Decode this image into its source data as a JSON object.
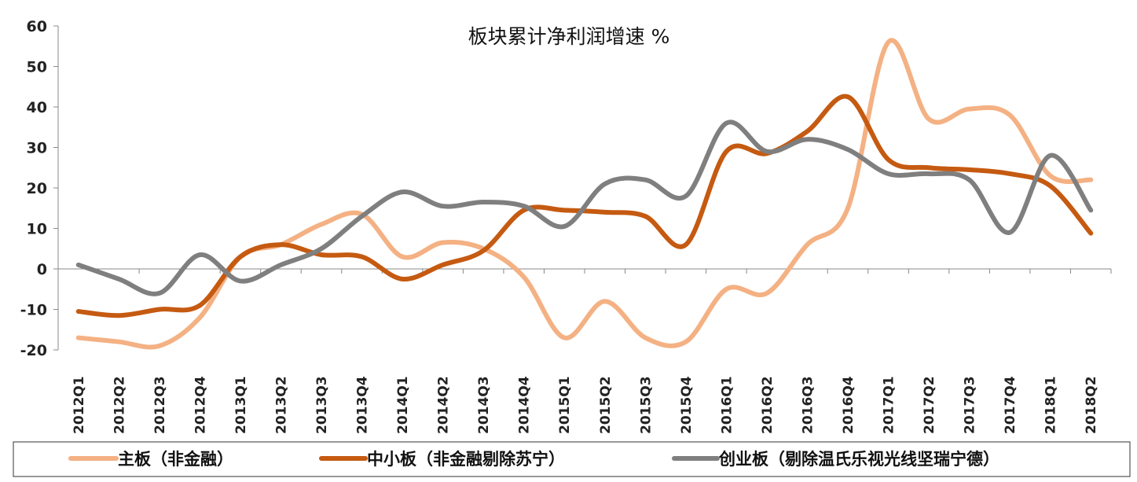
{
  "chart_data": {
    "type": "line",
    "title": "板块累计净利润增速 %",
    "xlabel": "",
    "ylabel": "",
    "ylim": [
      -20,
      60
    ],
    "yticks": [
      60,
      50,
      40,
      30,
      20,
      10,
      0,
      -10,
      -20
    ],
    "grid": false,
    "legend_position": "bottom",
    "categories": [
      "2012Q1",
      "2012Q2",
      "2012Q3",
      "2012Q4",
      "2013Q1",
      "2013Q2",
      "2013Q3",
      "2013Q4",
      "2014Q1",
      "2014Q2",
      "2014Q3",
      "2014Q4",
      "2015Q1",
      "2015Q2",
      "2015Q3",
      "2015Q4",
      "2016Q1",
      "2016Q2",
      "2016Q3",
      "2016Q4",
      "2017Q1",
      "2017Q2",
      "2017Q3",
      "2017Q4",
      "2018Q1",
      "2018Q2"
    ],
    "series": [
      {
        "name": "主板（非金融）",
        "color": "#F4B183",
        "values": [
          -17,
          -18,
          -19,
          -12,
          3,
          6,
          11,
          13.5,
          3,
          6.5,
          5,
          -2,
          -17,
          -8,
          -17,
          -18,
          -5,
          -6,
          6,
          15,
          56,
          37,
          39.5,
          38,
          23,
          22
        ]
      },
      {
        "name": "中小板（非金融剔除苏宁）",
        "color": "#C55A11",
        "values": [
          -10.5,
          -11.5,
          -10,
          -9,
          3,
          6,
          3.5,
          3,
          -2.5,
          1,
          4.5,
          14.5,
          14.5,
          14,
          13,
          6,
          29,
          28.5,
          34,
          42.5,
          27,
          25,
          24.5,
          23.5,
          20.5,
          8.8
        ]
      },
      {
        "name": "创业板（剔除温氏乐视光线坚瑞宁德）",
        "color": "#7F7F7F",
        "values": [
          1,
          -2.5,
          -6,
          3.5,
          -3,
          1,
          5,
          13,
          19,
          15.5,
          16.5,
          15.5,
          10.5,
          21,
          22,
          18,
          36,
          29,
          32,
          29.5,
          23.5,
          23.5,
          22,
          9,
          28,
          14.5
        ]
      }
    ]
  }
}
